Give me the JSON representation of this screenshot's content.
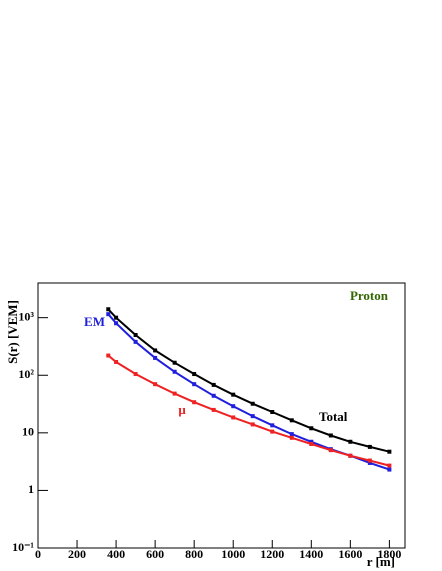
{
  "chart_data": {
    "type": "line",
    "xlabel": "r [m]",
    "ylabel": "S(r) [VEM]",
    "annotations": [
      "Proton"
    ],
    "annotation_color": "#336600",
    "x": [
      360,
      400,
      500,
      600,
      700,
      800,
      900,
      1000,
      1100,
      1200,
      1300,
      1400,
      1500,
      1600,
      1700,
      1800
    ],
    "series": [
      {
        "name": "Total",
        "color": "#000000",
        "values": [
          1400,
          1000,
          500,
          270,
          165,
          105,
          68,
          46,
          32,
          23,
          16.5,
          12,
          9,
          7,
          5.7,
          4.7
        ]
      },
      {
        "name": "EM",
        "color": "#1f1fdd",
        "values": [
          1150,
          800,
          380,
          200,
          115,
          70,
          44,
          29,
          19.5,
          13.5,
          9.5,
          7,
          5.2,
          4,
          3,
          2.3
        ]
      },
      {
        "name": "μ",
        "color": "#ee2222",
        "values": [
          220,
          170,
          105,
          70,
          48,
          34,
          25,
          18.5,
          14,
          10.5,
          8.2,
          6.4,
          5,
          4,
          3.3,
          2.7
        ]
      }
    ],
    "xlim": [
      0,
      1880
    ],
    "xticks": [
      0,
      200,
      400,
      600,
      800,
      1000,
      1200,
      1400,
      1600,
      1800
    ],
    "ylim": [
      0.1,
      4000
    ],
    "ylog": true,
    "yticks": [
      {
        "value": 0.1,
        "label": "10⁻¹"
      },
      1,
      10,
      {
        "value": 100,
        "label": "10²"
      },
      {
        "value": 1000,
        "label": "10³"
      }
    ]
  }
}
